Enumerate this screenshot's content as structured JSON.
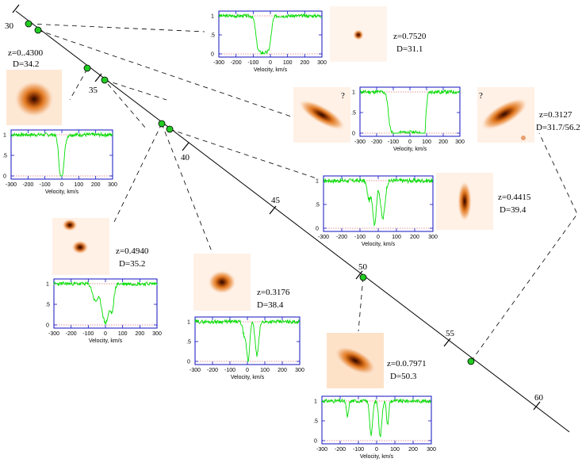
{
  "figure": {
    "tick_labels": [
      "30",
      "35",
      "40",
      "45",
      "50",
      "55",
      "60"
    ],
    "colors": {
      "spectrum": "#00dd00",
      "frame": "#1010c0",
      "unity": "#d03030",
      "marker": "#22cc22",
      "galaxy_core": "#2a0a00"
    },
    "velocity_axis_label": "Velocity, km/s",
    "y_tick_labels": [
      "1",
      ".5",
      "0"
    ],
    "x_tick_labels_a": [
      "-300",
      "-200",
      "-100",
      "0",
      "100",
      "200",
      "300"
    ],
    "x_tick_labels_b": [
      "-300",
      "-200",
      "-100",
      "0",
      "100",
      "200",
      "300"
    ],
    "question_mark": "?"
  },
  "objects": [
    {
      "id": "g1",
      "z": "z=0.7520",
      "d": "D=31.1"
    },
    {
      "id": "g2",
      "z": "z=0..4300",
      "d": "D=34.2"
    },
    {
      "id": "g3",
      "z": "z=0.3127",
      "d": "D=31.7/56.2"
    },
    {
      "id": "g4",
      "z": "z=0.4415",
      "d": "D=39.4"
    },
    {
      "id": "g5",
      "z": "z=0.4940",
      "d": "D=35.2"
    },
    {
      "id": "g6",
      "z": "z=0.3176",
      "d": "D=38.4"
    },
    {
      "id": "g7",
      "z": "z=0.0.7971",
      "d": "D=50.3"
    }
  ]
}
